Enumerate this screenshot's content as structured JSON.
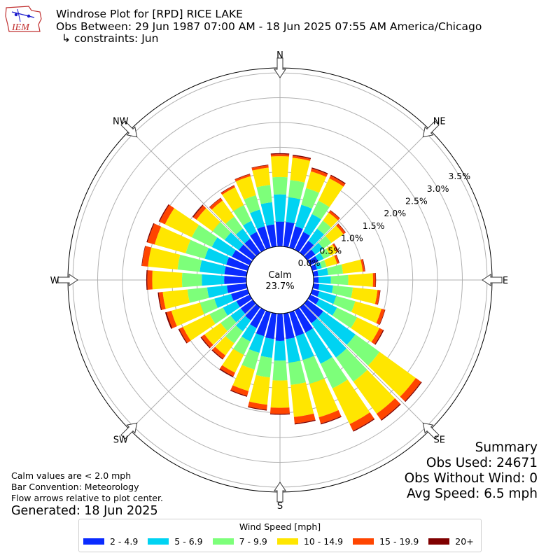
{
  "header": {
    "logo_text": "IEM",
    "title": "Windrose Plot for [RPD] RICE LAKE",
    "subtitle_line1": "Obs Between: 29 Jun 1987 07:00 AM - 18 Jun 2025 07:55 AM America/Chicago",
    "subtitle_line2": "↳ constraints: Jun"
  },
  "notes": {
    "calm": "Calm values are < 2.0 mph",
    "bar_convention": "Bar Convention: Meteorology",
    "flow": "Flow arrows relative to plot center.",
    "generated": "Generated: 18 Jun 2025"
  },
  "summary": {
    "title": "Summary",
    "obs_used": "Obs Used: 24671",
    "obs_without_wind": "Obs Without Wind: 0",
    "avg_speed": "Avg Speed: 6.5 mph"
  },
  "legend": {
    "title": "Wind Speed [mph]",
    "items": [
      {
        "label": "2 - 4.9",
        "color": "#0a2bff"
      },
      {
        "label": "5 - 6.9",
        "color": "#00d3f2"
      },
      {
        "label": "7 - 9.9",
        "color": "#7dff7a"
      },
      {
        "label": "10 - 14.9",
        "color": "#ffe600"
      },
      {
        "label": "15 - 19.9",
        "color": "#ff4500"
      },
      {
        "label": "20+",
        "color": "#800000"
      }
    ]
  },
  "chart_data": {
    "type": "windrose",
    "calm_label": "Calm",
    "calm_value": "23.7%",
    "rmax": 3.6,
    "radial_ticks": [
      0.0,
      0.5,
      1.0,
      1.5,
      2.0,
      2.5,
      3.0,
      3.5
    ],
    "radial_tick_labels": [
      "0.0%",
      "0.5%",
      "1.0%",
      "1.5%",
      "2.0%",
      "2.5%",
      "3.0%",
      "3.5%"
    ],
    "compass_labels": [
      {
        "text": "N",
        "angle": 0
      },
      {
        "text": "NE",
        "angle": 45
      },
      {
        "text": "E",
        "angle": 90
      },
      {
        "text": "SE",
        "angle": 135
      },
      {
        "text": "S",
        "angle": 180
      },
      {
        "text": "SW",
        "angle": 225
      },
      {
        "text": "W",
        "angle": 270
      },
      {
        "text": "NW",
        "angle": 315
      }
    ],
    "bins": [
      "2 - 4.9",
      "5 - 6.9",
      "7 - 9.9",
      "10 - 14.9",
      "15 - 19.9",
      "20+"
    ],
    "directions": [
      0,
      10,
      20,
      30,
      40,
      50,
      60,
      70,
      80,
      90,
      100,
      110,
      120,
      130,
      140,
      150,
      160,
      170,
      180,
      190,
      200,
      210,
      220,
      230,
      240,
      250,
      260,
      270,
      280,
      290,
      300,
      310,
      320,
      330,
      340,
      350
    ],
    "cumulative": [
      [
        0.5,
        1.05,
        1.4,
        1.82,
        1.86,
        1.88
      ],
      [
        0.5,
        1.0,
        1.35,
        1.8,
        1.84,
        1.86
      ],
      [
        0.45,
        0.9,
        1.25,
        1.6,
        1.66,
        1.68
      ],
      [
        0.4,
        0.8,
        1.1,
        1.6,
        1.66,
        1.68
      ],
      [
        0.3,
        0.6,
        0.8,
        1.0,
        1.05,
        1.06
      ],
      [
        0.2,
        0.4,
        0.6,
        0.9,
        0.95,
        0.96
      ],
      [
        0.18,
        0.3,
        0.45,
        0.6,
        0.63,
        0.64
      ],
      [
        0.1,
        0.2,
        0.3,
        0.52,
        0.56,
        0.57
      ],
      [
        0.1,
        0.3,
        0.6,
        1.0,
        1.04,
        1.05
      ],
      [
        0.1,
        0.35,
        0.7,
        1.2,
        1.25,
        1.26
      ],
      [
        0.12,
        0.4,
        0.8,
        1.3,
        1.35,
        1.36
      ],
      [
        0.15,
        0.5,
        0.9,
        1.45,
        1.52,
        1.53
      ],
      [
        0.2,
        0.6,
        1.05,
        1.55,
        1.63,
        1.65
      ],
      [
        0.4,
        1.2,
        1.8,
        2.7,
        2.83,
        2.85
      ],
      [
        0.4,
        1.25,
        1.85,
        2.65,
        2.8,
        2.82
      ],
      [
        0.5,
        1.2,
        1.75,
        2.55,
        2.7,
        2.72
      ],
      [
        0.5,
        1.0,
        1.5,
        2.2,
        2.33,
        2.35
      ],
      [
        0.52,
        1.0,
        1.45,
        2.1,
        2.23,
        2.25
      ],
      [
        0.55,
        0.95,
        1.35,
        1.9,
        2.02,
        2.04
      ],
      [
        0.52,
        0.9,
        1.3,
        1.85,
        1.95,
        1.97
      ],
      [
        0.5,
        0.85,
        1.2,
        1.65,
        1.75,
        1.77
      ],
      [
        0.4,
        0.7,
        1.0,
        1.4,
        1.48,
        1.5
      ],
      [
        0.33,
        0.6,
        0.9,
        1.2,
        1.28,
        1.3
      ],
      [
        0.3,
        0.55,
        0.8,
        1.2,
        1.28,
        1.3
      ],
      [
        0.3,
        0.6,
        0.9,
        1.5,
        1.58,
        1.6
      ],
      [
        0.35,
        0.7,
        1.0,
        1.6,
        1.7,
        1.73
      ],
      [
        0.4,
        0.8,
        1.2,
        1.7,
        1.78,
        1.8
      ],
      [
        0.45,
        0.9,
        1.3,
        1.9,
        2.0,
        2.02
      ],
      [
        0.45,
        0.95,
        1.4,
        2.0,
        2.12,
        2.13
      ],
      [
        0.45,
        0.9,
        1.3,
        1.95,
        2.1,
        2.12
      ],
      [
        0.4,
        0.85,
        1.3,
        1.9,
        2.02,
        2.04
      ],
      [
        0.35,
        0.7,
        1.0,
        1.4,
        1.48,
        1.5
      ],
      [
        0.35,
        0.6,
        0.9,
        1.3,
        1.36,
        1.37
      ],
      [
        0.4,
        0.65,
        1.0,
        1.4,
        1.44,
        1.45
      ],
      [
        0.45,
        0.8,
        1.1,
        1.5,
        1.54,
        1.55
      ],
      [
        0.45,
        0.9,
        1.25,
        1.6,
        1.65,
        1.66
      ]
    ]
  }
}
